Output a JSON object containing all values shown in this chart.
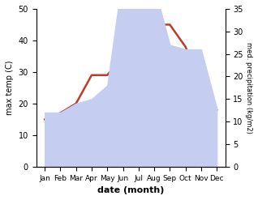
{
  "months": [
    "Jan",
    "Feb",
    "Mar",
    "Apr",
    "May",
    "Jun",
    "Jul",
    "Aug",
    "Sep",
    "Oct",
    "Nov",
    "Dec"
  ],
  "temp": [
    15,
    17,
    20,
    29,
    29,
    35,
    42,
    45,
    45,
    38,
    26,
    18
  ],
  "precip": [
    12,
    12,
    14,
    15,
    18,
    43,
    44,
    40,
    27,
    26,
    26,
    13
  ],
  "temp_color": "#c0392b",
  "precip_fill_color": "#c5cef0",
  "xlabel": "date (month)",
  "ylabel_left": "max temp (C)",
  "ylabel_right": "med. precipitation (kg/m2)",
  "ylim_left": [
    0,
    50
  ],
  "ylim_right": [
    0,
    35
  ],
  "yticks_left": [
    0,
    10,
    20,
    30,
    40,
    50
  ],
  "yticks_right": [
    0,
    5,
    10,
    15,
    20,
    25,
    30,
    35
  ],
  "background_color": "#ffffff"
}
